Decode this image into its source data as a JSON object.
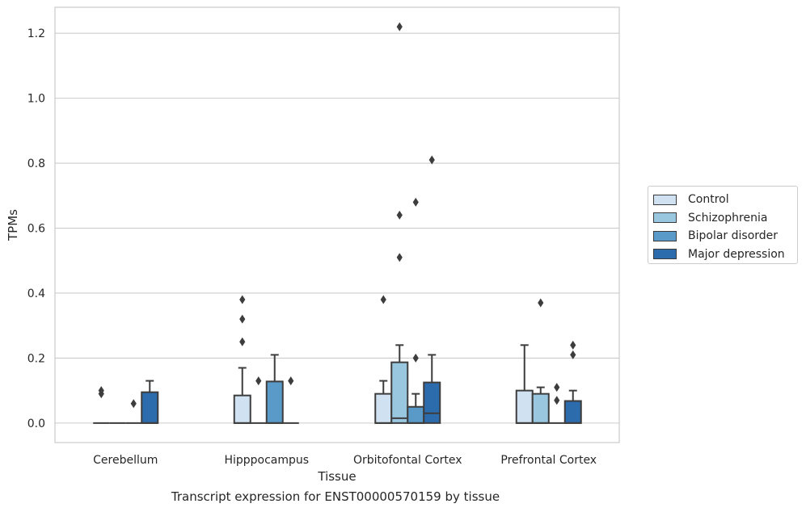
{
  "caption": "Transcript expression for ENST00000570159 by tissue",
  "chart_data": {
    "type": "box",
    "title": "",
    "xlabel": "Tissue",
    "ylabel": "TPMs",
    "ylim": [
      -0.06,
      1.28
    ],
    "yticks": [
      0.0,
      0.2,
      0.4,
      0.6,
      0.8,
      1.0,
      1.2
    ],
    "ytick_labels": [
      "0.0",
      "0.2",
      "0.4",
      "0.6",
      "0.8",
      "1.0",
      "1.2"
    ],
    "grid": "horizontal",
    "legend_position": "right",
    "categories": [
      "Cerebellum",
      "Hipppocampus",
      "Orbitofontal Cortex",
      "Prefrontal Cortex"
    ],
    "series": [
      {
        "name": "Control",
        "color": "#d0e1f2",
        "boxes": [
          {
            "q1": 0,
            "median": 0,
            "q3": 0,
            "whislo": 0,
            "whishi": 0,
            "fliers": [
              0.09,
              0.1
            ]
          },
          {
            "q1": 0,
            "median": 0,
            "q3": 0.085,
            "whislo": 0,
            "whishi": 0.17,
            "fliers": [
              0.25,
              0.32,
              0.38
            ]
          },
          {
            "q1": 0,
            "median": 0,
            "q3": 0.09,
            "whislo": 0,
            "whishi": 0.13,
            "fliers": [
              0.38
            ]
          },
          {
            "q1": 0,
            "median": 0,
            "q3": 0.1,
            "whislo": 0,
            "whishi": 0.24,
            "fliers": []
          }
        ]
      },
      {
        "name": "Schizophrenia",
        "color": "#9ac7e0",
        "boxes": [
          {
            "q1": 0,
            "median": 0,
            "q3": 0,
            "whislo": 0,
            "whishi": 0,
            "fliers": []
          },
          {
            "q1": 0,
            "median": 0,
            "q3": 0,
            "whislo": 0,
            "whishi": 0,
            "fliers": [
              0.13
            ]
          },
          {
            "q1": 0,
            "median": 0.015,
            "q3": 0.187,
            "whislo": 0,
            "whishi": 0.24,
            "fliers": [
              0.51,
              0.64,
              1.22
            ]
          },
          {
            "q1": 0,
            "median": 0,
            "q3": 0.09,
            "whislo": 0,
            "whishi": 0.11,
            "fliers": [
              0.37
            ]
          }
        ]
      },
      {
        "name": "Bipolar disorder",
        "color": "#5a9ac8",
        "boxes": [
          {
            "q1": 0,
            "median": 0,
            "q3": 0,
            "whislo": 0,
            "whishi": 0,
            "fliers": [
              0.06
            ]
          },
          {
            "q1": 0,
            "median": 0,
            "q3": 0.128,
            "whislo": 0,
            "whishi": 0.21,
            "fliers": []
          },
          {
            "q1": 0,
            "median": 0,
            "q3": 0.05,
            "whislo": 0,
            "whishi": 0.09,
            "fliers": [
              0.2,
              0.68
            ]
          },
          {
            "q1": 0,
            "median": 0,
            "q3": 0,
            "whislo": 0,
            "whishi": 0,
            "fliers": [
              0.07,
              0.11
            ]
          }
        ]
      },
      {
        "name": "Major depression",
        "color": "#2c6bac",
        "boxes": [
          {
            "q1": 0,
            "median": 0,
            "q3": 0.095,
            "whislo": 0,
            "whishi": 0.13,
            "fliers": []
          },
          {
            "q1": 0,
            "median": 0,
            "q3": 0,
            "whislo": 0,
            "whishi": 0,
            "fliers": [
              0.13
            ]
          },
          {
            "q1": 0,
            "median": 0.03,
            "q3": 0.125,
            "whislo": 0,
            "whishi": 0.21,
            "fliers": [
              0.81
            ]
          },
          {
            "q1": 0,
            "median": 0,
            "q3": 0.068,
            "whislo": 0,
            "whishi": 0.1,
            "fliers": [
              0.21,
              0.24
            ]
          }
        ]
      }
    ]
  }
}
